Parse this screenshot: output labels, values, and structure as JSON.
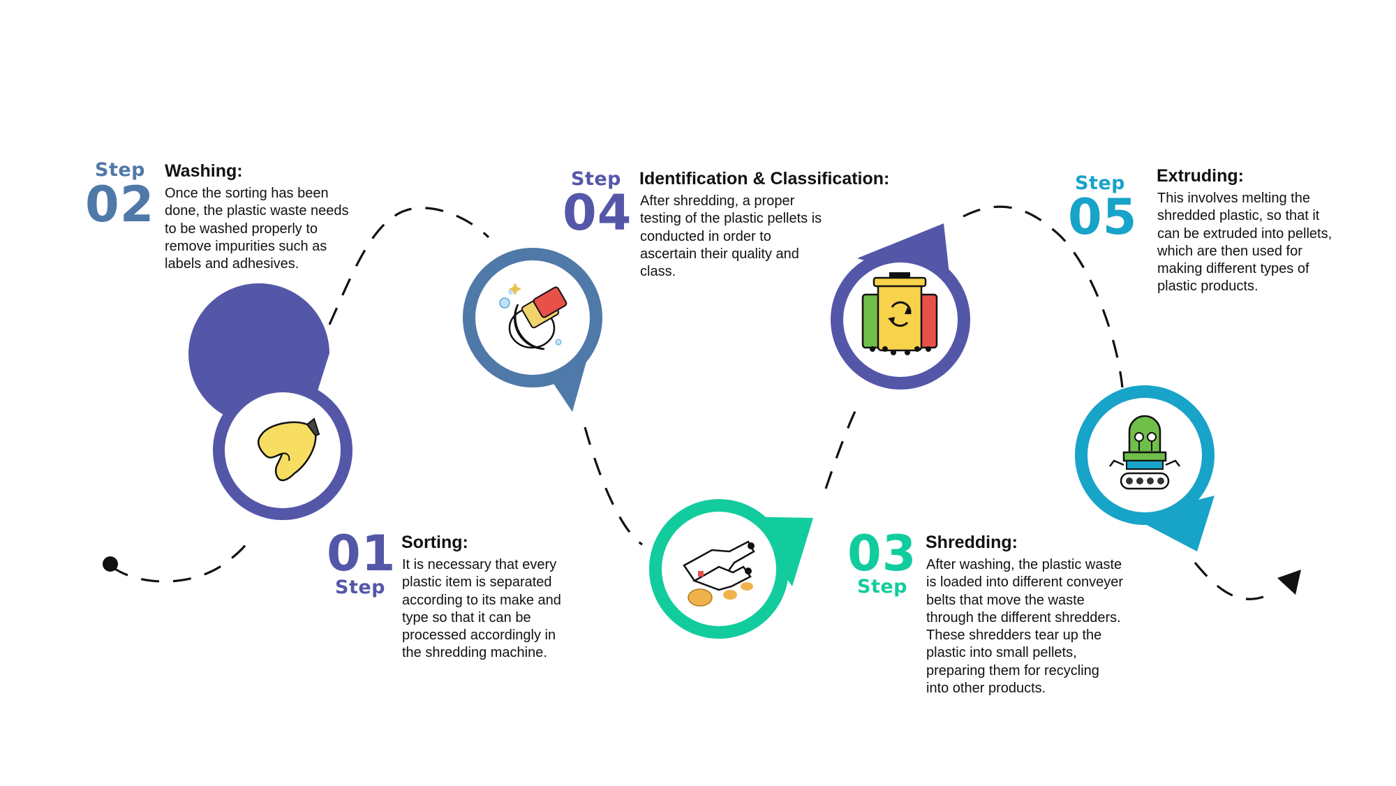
{
  "colors": {
    "step1": "#5457a8",
    "step2": "#4f79a8",
    "step3": "#12cc9e",
    "step4": "#5457a8",
    "step5": "#18a3c8",
    "path": "#111111"
  },
  "steps": [
    {
      "id": "01",
      "label": "Step",
      "number": "01",
      "title": "Sorting:",
      "description": "It is necessary that every plastic item is separated according to its make and type so that it can be processed accordingly in the shredding machine.",
      "icon": "hand-picking-icon"
    },
    {
      "id": "02",
      "label": "Step",
      "number": "02",
      "title": "Washing:",
      "description": "Once the sorting has been done, the plastic waste needs to be washed properly to remove impurities such as labels and adhesives.",
      "icon": "washing-sponge-icon"
    },
    {
      "id": "03",
      "label": "Step",
      "number": "03",
      "title": "Shredding:",
      "description": "After washing, the plastic waste is loaded into different conveyer belts that move the waste through the different shredders. These shredders tear up the plastic into small pellets, preparing them for recycling into other products.",
      "icon": "shredder-machine-icon"
    },
    {
      "id": "04",
      "label": "Step",
      "number": "04",
      "title": "Identification & Classification:",
      "description": "After shredding, a proper testing of the plastic pellets is conducted in order to ascertain their quality and class.",
      "icon": "recycle-bins-icon"
    },
    {
      "id": "05",
      "label": "Step",
      "number": "05",
      "title": "Extruding:",
      "description": "This involves melting the shredded plastic, so that it can be extruded into pellets, which are then used for making different types of plastic products.",
      "icon": "extruder-robot-icon"
    }
  ]
}
